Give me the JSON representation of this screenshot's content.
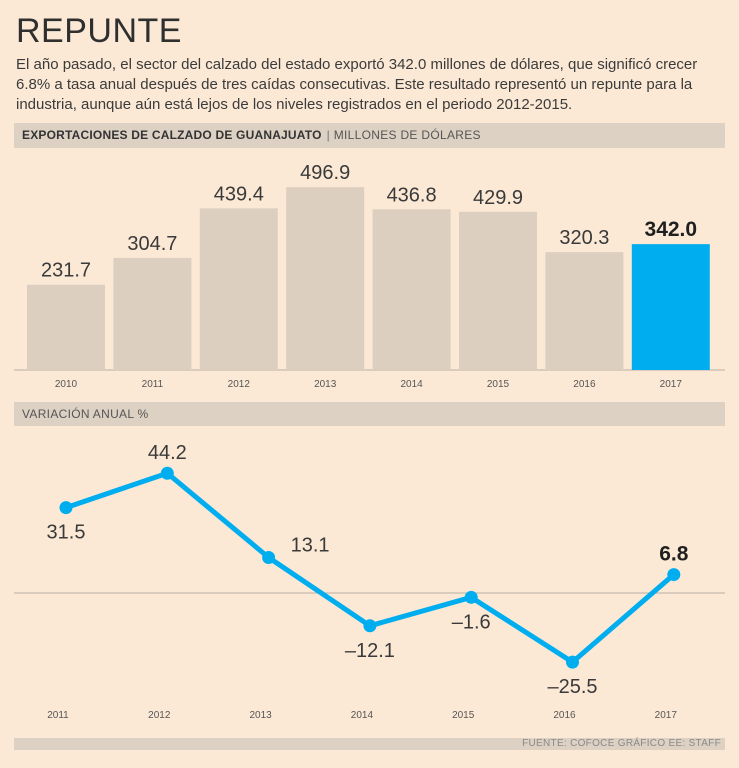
{
  "header": {
    "title": "REPUNTE",
    "subtitle": "El año pasado, el sector del calzado del estado exportó 342.0 millones de dólares, que significó crecer 6.8% a tasa anual después de tres caídas consecutivas. Este resultado representó un repunte para la industria, aunque aún está lejos de los niveles registrados en el periodo 2012-2015."
  },
  "colors": {
    "background": "#fbe9d5",
    "bar": "#ddcfc0",
    "highlight": "#00aeef",
    "header_band": "#ddd1c4"
  },
  "chart_data": [
    {
      "type": "bar",
      "title": "EXPORTACIONES DE CALZADO DE GUANAJUATO",
      "unit": "MILLONES DE DÓLARES",
      "categories": [
        "2010",
        "2011",
        "2012",
        "2013",
        "2014",
        "2015",
        "2016",
        "2017"
      ],
      "values": [
        231.7,
        304.7,
        439.4,
        496.9,
        436.8,
        429.9,
        320.3,
        342.0
      ],
      "labels": [
        "231.7",
        "304.7",
        "439.4",
        "496.9",
        "436.8",
        "429.9",
        "320.3",
        "342.0"
      ],
      "highlight_index": 7,
      "ylim": [
        0,
        500
      ]
    },
    {
      "type": "line",
      "title": "VARIACIÓN ANUAL %",
      "categories": [
        "2011",
        "2012",
        "2013",
        "2014",
        "2015",
        "2016",
        "2017"
      ],
      "values": [
        31.5,
        44.2,
        13.1,
        -12.1,
        -1.6,
        -25.5,
        6.8
      ],
      "labels": [
        "31.5",
        "44.2",
        "13.1",
        "–12.1",
        "–1.6",
        "–25.5",
        "6.8"
      ],
      "label_position": [
        "below",
        "above",
        "right",
        "below",
        "below",
        "below",
        "above"
      ],
      "highlight_index": 6,
      "ylim": [
        -30,
        50
      ]
    }
  ],
  "footer": {
    "source": "FUENTE: COFOCE   GRÁFICO EE: STAFF"
  }
}
